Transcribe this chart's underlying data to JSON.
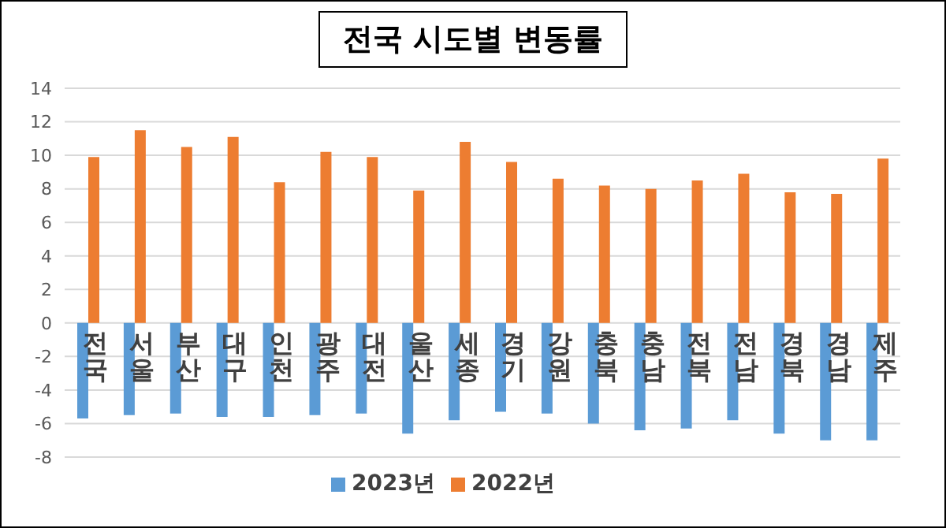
{
  "chart_data": {
    "type": "bar",
    "title": "전국 시도별 변동률",
    "categories": [
      "전국",
      "서울",
      "부산",
      "대구",
      "인천",
      "광주",
      "대전",
      "울산",
      "세종",
      "경기",
      "강원",
      "충북",
      "충남",
      "전북",
      "전남",
      "경북",
      "경남",
      "제주"
    ],
    "series": [
      {
        "name": "2023년",
        "color": "#5b9bd5",
        "values": [
          -5.7,
          -5.5,
          -5.4,
          -5.6,
          -5.6,
          -5.5,
          -5.4,
          -6.6,
          -5.8,
          -5.3,
          -5.4,
          -6.0,
          -6.4,
          -6.3,
          -5.8,
          -6.6,
          -7.0,
          -7.0
        ]
      },
      {
        "name": "2022년",
        "color": "#ed7d31",
        "values": [
          9.9,
          11.5,
          10.5,
          11.1,
          8.4,
          10.2,
          9.9,
          7.9,
          10.8,
          9.6,
          8.6,
          8.2,
          8.0,
          8.5,
          8.9,
          7.8,
          7.7,
          9.8
        ]
      }
    ],
    "ylim": [
      -8,
      14
    ],
    "yticks": [
      -8,
      -6,
      -4,
      -2,
      0,
      2,
      4,
      6,
      8,
      10,
      12,
      14
    ],
    "grid": "y",
    "legend": "bottom"
  }
}
